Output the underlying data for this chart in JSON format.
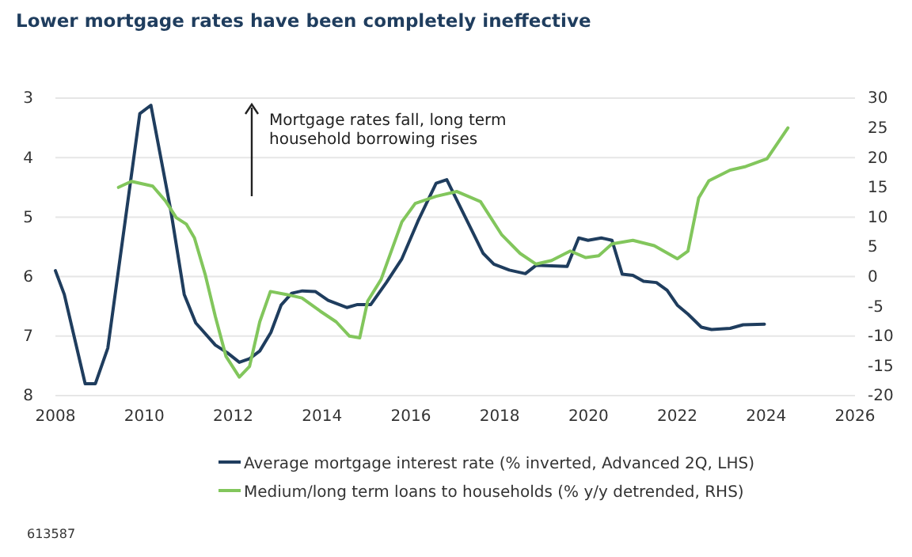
{
  "chart_data": {
    "type": "line",
    "title": "Lower mortgage rates have been completely ineffective",
    "xlim": [
      2008,
      2026
    ],
    "xticks": [
      2008,
      2010,
      2012,
      2014,
      2016,
      2018,
      2020,
      2022,
      2024,
      2026
    ],
    "ylim": [
      8,
      3
    ],
    "yticks": [
      3,
      4,
      5,
      6,
      7,
      8
    ],
    "y2lim": [
      -20,
      30
    ],
    "y2ticks": [
      -20,
      -15,
      -10,
      -5,
      0,
      5,
      10,
      15,
      20,
      25,
      30
    ],
    "grid": "y",
    "legend": "bottom",
    "line_style": "solid",
    "marker": "none",
    "annotations": [
      "Mortgage rates fall, long term household borrowing rises",
      "613587"
    ],
    "series": [
      {
        "name": "Average mortgage interest rate (% inverted, Advanced 2Q, LHS)",
        "color": "#1f3d5e",
        "x": [
          2008.0,
          2008.2,
          2008.67,
          2008.9,
          2009.18,
          2009.9,
          2010.15,
          2010.6,
          2010.9,
          2011.16,
          2011.6,
          2011.87,
          2012.14,
          2012.37,
          2012.6,
          2012.85,
          2013.08,
          2013.32,
          2013.56,
          2013.85,
          2014.14,
          2014.56,
          2014.8,
          2015.1,
          2015.45,
          2015.8,
          2016.16,
          2016.57,
          2016.81,
          2017.16,
          2017.63,
          2017.87,
          2018.22,
          2018.58,
          2018.82,
          2019.52,
          2019.78,
          2019.99,
          2020.29,
          2020.53,
          2020.76,
          2021.0,
          2021.24,
          2021.53,
          2021.77,
          2022.0,
          2022.24,
          2022.54,
          2022.77,
          2023.19,
          2023.48,
          2023.96
        ],
        "values": [
          5.9,
          6.3,
          7.8,
          7.8,
          7.2,
          3.26,
          3.12,
          4.9,
          6.3,
          6.78,
          7.15,
          7.28,
          7.44,
          7.38,
          7.25,
          6.94,
          6.48,
          6.28,
          6.24,
          6.25,
          6.4,
          6.52,
          6.47,
          6.47,
          6.1,
          5.7,
          5.07,
          4.43,
          4.37,
          4.9,
          5.61,
          5.79,
          5.89,
          5.95,
          5.81,
          5.83,
          5.35,
          5.39,
          5.35,
          5.39,
          5.96,
          5.98,
          6.08,
          6.1,
          6.23,
          6.48,
          6.63,
          6.85,
          6.89,
          6.87,
          6.81,
          6.8
        ]
      },
      {
        "name": "Medium/long term loans to households (% y/y detrended, RHS)",
        "color": "#82c65c",
        "axis": "y2",
        "x": [
          2009.42,
          2009.71,
          2010.19,
          2010.48,
          2010.72,
          2010.95,
          2011.13,
          2011.37,
          2011.6,
          2011.84,
          2012.14,
          2012.37,
          2012.6,
          2012.84,
          2013.2,
          2013.55,
          2013.96,
          2014.32,
          2014.62,
          2014.85,
          2015.03,
          2015.33,
          2015.8,
          2016.1,
          2016.57,
          2017.04,
          2017.57,
          2018.05,
          2018.46,
          2018.82,
          2019.17,
          2019.59,
          2019.94,
          2020.23,
          2020.53,
          2021.0,
          2021.48,
          2022.0,
          2022.24,
          2022.48,
          2022.71,
          2023.19,
          2023.54,
          2024.02,
          2024.49
        ],
        "values": [
          15.0,
          16.0,
          15.2,
          12.7,
          9.9,
          8.8,
          6.5,
          0.4,
          -6.7,
          -13.4,
          -16.9,
          -15.1,
          -7.6,
          -2.5,
          -3.0,
          -3.6,
          -5.8,
          -7.6,
          -10.0,
          -10.3,
          -4.1,
          -0.5,
          9.2,
          12.3,
          13.5,
          14.3,
          12.6,
          7.0,
          3.9,
          2.1,
          2.7,
          4.3,
          3.2,
          3.5,
          5.5,
          6.1,
          5.2,
          3.0,
          4.3,
          13.2,
          16.1,
          17.9,
          18.5,
          19.8,
          25.0
        ]
      }
    ]
  }
}
